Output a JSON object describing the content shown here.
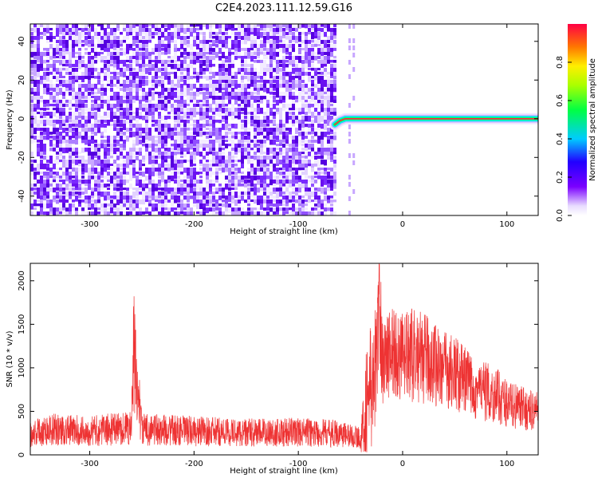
{
  "title": "C2E4.2023.111.12.59.G16",
  "chart_data": [
    {
      "type": "heatmap",
      "title": "C2E4.2023.111.12.59.G16",
      "xlabel": "Height of straight line (km)",
      "ylabel": "Frequency (Hz)",
      "xlim": [
        -357,
        130
      ],
      "ylim": [
        -50,
        49
      ],
      "xticks": [
        -300,
        -200,
        -100,
        0,
        100
      ],
      "yticks": [
        -40,
        -20,
        0,
        20,
        40
      ],
      "noise_region_km": [
        -357,
        -65
      ],
      "signal_track": {
        "x": [
          -65,
          -60,
          -55,
          -50,
          -40,
          -20,
          0,
          50,
          100,
          130
        ],
        "y": [
          -3,
          -1,
          0,
          0,
          0,
          0,
          0,
          0,
          0,
          0
        ]
      },
      "colorbar": {
        "label": "Normalized spectral amplitude",
        "range": [
          0.0,
          1.0
        ],
        "ticks": [
          "0.0",
          "0.2",
          "0.4",
          "0.6",
          "0.8"
        ]
      },
      "grid": false
    },
    {
      "type": "line",
      "xlabel": "Height of straight line (km)",
      "ylabel": "SNR (10 * v/v)",
      "xlim": [
        -357,
        130
      ],
      "ylim": [
        0,
        2200
      ],
      "xticks": [
        -300,
        -200,
        -100,
        0,
        100
      ],
      "yticks": [
        0,
        500,
        1000,
        1500,
        2000
      ],
      "color": "#ee3333",
      "series": [
        {
          "x": [
            -357,
            -340,
            -300,
            -260,
            -258,
            -250,
            -200,
            -150,
            -100,
            -60,
            -40,
            -35,
            -30,
            -25,
            -22,
            -20,
            -10,
            0,
            10,
            20,
            30,
            40,
            50,
            60,
            70,
            80,
            90,
            100,
            110,
            120,
            130
          ],
          "y": [
            250,
            300,
            280,
            320,
            1200,
            300,
            280,
            260,
            270,
            250,
            200,
            900,
            1100,
            1300,
            2200,
            1300,
            1400,
            1300,
            1350,
            1300,
            1250,
            1150,
            1100,
            1000,
            900,
            850,
            800,
            700,
            650,
            600,
            600
          ]
        }
      ],
      "grid": false
    }
  ]
}
